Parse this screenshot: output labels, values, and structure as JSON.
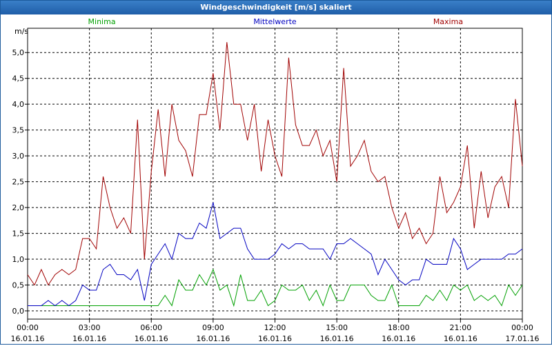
{
  "window_title": "Windgeschwindigkeit [m/s] skaliert",
  "chart_data": {
    "type": "line",
    "ylabel": "m/s",
    "xlim": [
      0,
      1440
    ],
    "ylim": [
      -0.16,
      5.47
    ],
    "grid": true,
    "xticks": [
      {
        "value": 0,
        "label": "00:00"
      },
      {
        "value": 180,
        "label": "03:00"
      },
      {
        "value": 360,
        "label": "06:00"
      },
      {
        "value": 540,
        "label": "09:00"
      },
      {
        "value": 720,
        "label": "12:00"
      },
      {
        "value": 900,
        "label": "15:00"
      },
      {
        "value": 1080,
        "label": "18:00"
      },
      {
        "value": 1260,
        "label": "21:00"
      },
      {
        "value": 1440,
        "label": "00:00"
      }
    ],
    "xtick_dates": [
      "16.01.16",
      "16.01.16",
      "16.01.16",
      "16.01.16",
      "16.01.16",
      "16.01.16",
      "16.01.16",
      "16.01.16",
      "17.01.16"
    ],
    "yticks": [
      {
        "value": 0,
        "label": "0,0"
      },
      {
        "value": 0.5,
        "label": "0,5"
      },
      {
        "value": 1,
        "label": "1,0"
      },
      {
        "value": 1.5,
        "label": "1,5"
      },
      {
        "value": 2,
        "label": "2,0"
      },
      {
        "value": 2.5,
        "label": "2,5"
      },
      {
        "value": 3,
        "label": "3,0"
      },
      {
        "value": 3.5,
        "label": "3,5"
      },
      {
        "value": 4,
        "label": "4,0"
      },
      {
        "value": 4.5,
        "label": "4,5"
      },
      {
        "value": 5,
        "label": "5,0"
      }
    ],
    "x": [
      0,
      20,
      40,
      60,
      80,
      100,
      120,
      140,
      160,
      180,
      200,
      220,
      240,
      260,
      280,
      300,
      320,
      340,
      360,
      380,
      400,
      420,
      440,
      460,
      480,
      500,
      520,
      540,
      560,
      580,
      600,
      620,
      640,
      660,
      680,
      700,
      720,
      740,
      760,
      780,
      800,
      820,
      840,
      860,
      880,
      900,
      920,
      940,
      960,
      980,
      1000,
      1020,
      1040,
      1060,
      1080,
      1100,
      1120,
      1140,
      1160,
      1180,
      1200,
      1220,
      1240,
      1260,
      1280,
      1300,
      1320,
      1340,
      1360,
      1380,
      1400,
      1420,
      1440
    ],
    "series": [
      {
        "name": "Minima",
        "color": "#00a000",
        "values": [
          0.1,
          0.1,
          0.1,
          0.1,
          0.1,
          0.1,
          0.1,
          0.1,
          0.1,
          0.1,
          0.1,
          0.1,
          0.1,
          0.1,
          0.1,
          0.1,
          0.1,
          0.1,
          0.1,
          0.1,
          0.3,
          0.1,
          0.6,
          0.4,
          0.4,
          0.7,
          0.5,
          0.8,
          0.4,
          0.5,
          0.1,
          0.7,
          0.2,
          0.2,
          0.4,
          0.1,
          0.2,
          0.5,
          0.4,
          0.4,
          0.5,
          0.2,
          0.4,
          0.1,
          0.5,
          0.2,
          0.2,
          0.5,
          0.5,
          0.5,
          0.3,
          0.2,
          0.2,
          0.5,
          0.1,
          0.1,
          0.1,
          0.1,
          0.3,
          0.2,
          0.4,
          0.2,
          0.5,
          0.4,
          0.5,
          0.2,
          0.3,
          0.2,
          0.3,
          0.1,
          0.5,
          0.3,
          0.5
        ]
      },
      {
        "name": "Mittelwerte",
        "color": "#0000c0",
        "values": [
          0.1,
          0.1,
          0.1,
          0.2,
          0.1,
          0.2,
          0.1,
          0.2,
          0.5,
          0.4,
          0.4,
          0.8,
          0.9,
          0.7,
          0.7,
          0.6,
          0.8,
          0.2,
          0.9,
          1.1,
          1.3,
          1.0,
          1.5,
          1.4,
          1.4,
          1.7,
          1.6,
          2.1,
          1.4,
          1.5,
          1.6,
          1.6,
          1.2,
          1.0,
          1.0,
          1.0,
          1.1,
          1.3,
          1.2,
          1.3,
          1.3,
          1.2,
          1.2,
          1.2,
          1.0,
          1.3,
          1.3,
          1.4,
          1.3,
          1.2,
          1.1,
          0.7,
          1.0,
          0.8,
          0.6,
          0.5,
          0.6,
          0.6,
          1.0,
          0.9,
          0.9,
          0.9,
          1.4,
          1.2,
          0.8,
          0.9,
          1.0,
          1.0,
          1.0,
          1.0,
          1.1,
          1.1,
          1.2
        ]
      },
      {
        "name": "Maxima",
        "color": "#a00000",
        "values": [
          0.7,
          0.5,
          0.8,
          0.5,
          0.7,
          0.8,
          0.7,
          0.8,
          1.4,
          1.4,
          1.2,
          2.6,
          2.0,
          1.6,
          1.8,
          1.5,
          3.7,
          1.0,
          2.7,
          3.9,
          2.6,
          4.0,
          3.3,
          3.1,
          2.6,
          3.8,
          3.8,
          4.6,
          3.5,
          5.2,
          4.0,
          4.0,
          3.3,
          4.0,
          2.7,
          3.7,
          3.0,
          2.6,
          4.9,
          3.6,
          3.2,
          3.2,
          3.5,
          3.0,
          3.3,
          2.5,
          4.7,
          2.8,
          3.0,
          3.3,
          2.7,
          2.5,
          2.6,
          2.0,
          1.6,
          1.9,
          1.4,
          1.6,
          1.3,
          1.5,
          2.6,
          1.9,
          2.1,
          2.4,
          3.2,
          1.6,
          2.7,
          1.8,
          2.4,
          2.6,
          2.0,
          4.1,
          2.8
        ]
      }
    ]
  }
}
